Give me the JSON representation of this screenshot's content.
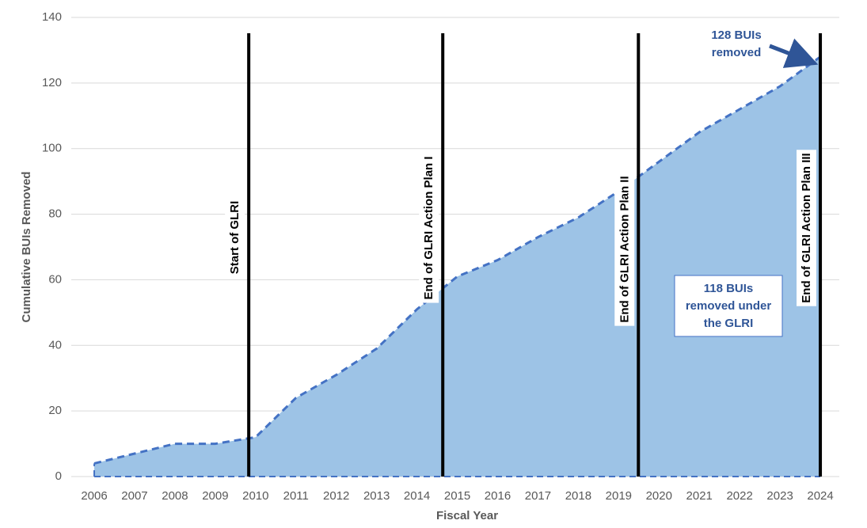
{
  "chart_data": {
    "type": "area",
    "x_label": "Fiscal Year",
    "y_label": "Cumulative BUIs Removed",
    "x": [
      2006,
      2007,
      2008,
      2009,
      2010,
      2011,
      2012,
      2013,
      2014,
      2015,
      2016,
      2017,
      2018,
      2019,
      2020,
      2021,
      2022,
      2023,
      2024
    ],
    "values": [
      4,
      7,
      10,
      10,
      12,
      24,
      31,
      39,
      51,
      61,
      66,
      73,
      79,
      87,
      96,
      105,
      112,
      119,
      128
    ],
    "color": "#4472c4",
    "fill": "#9dc3e6",
    "xlim": [
      2005.43,
      2024.47
    ],
    "xticks": [
      2006,
      2007,
      2008,
      2009,
      2010,
      2011,
      2012,
      2013,
      2014,
      2015,
      2016,
      2017,
      2018,
      2019,
      2020,
      2021,
      2022,
      2023,
      2024
    ],
    "ylim": [
      0,
      140
    ],
    "yticks": [
      0,
      20,
      40,
      60,
      80,
      100,
      120,
      140
    ],
    "grid": true,
    "events": [
      {
        "x": 2009.83,
        "label": "Start of GLRI"
      },
      {
        "x": 2014.64,
        "label": "End of GLRI Action Plan I"
      },
      {
        "x": 2019.49,
        "label": "End of GLRI Action Plan II"
      },
      {
        "x": 2024,
        "label": "End of GLRI Action Plan III"
      }
    ],
    "annotations": [
      [
        "128 BUIs",
        "removed"
      ],
      [
        "118 BUIs",
        "removed under",
        "the GLRI"
      ]
    ]
  }
}
